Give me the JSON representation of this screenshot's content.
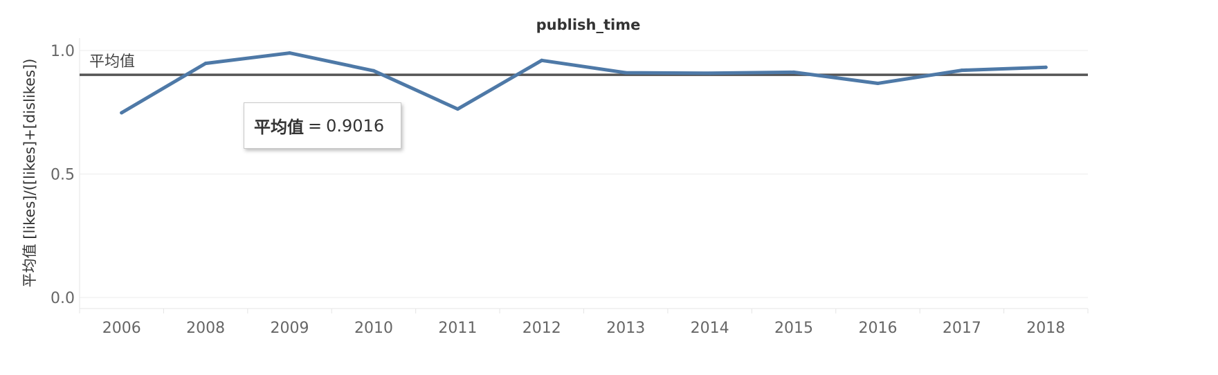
{
  "chart_data": {
    "type": "line",
    "title": "publish_time",
    "ylabel": "平均值 [likes]/([likes]+[dislikes])",
    "xlabel": "",
    "ylim": [
      0,
      1.05
    ],
    "yticks": [
      "0.0",
      "0.5",
      "1.0"
    ],
    "categories": [
      "2006",
      "2008",
      "2009",
      "2010",
      "2011",
      "2012",
      "2013",
      "2014",
      "2015",
      "2016",
      "2017",
      "2018"
    ],
    "series": [
      {
        "values": [
          0.748,
          0.948,
          0.99,
          0.918,
          0.763,
          0.96,
          0.91,
          0.908,
          0.912,
          0.867,
          0.92,
          0.932
        ],
        "color": "#4e79a7"
      }
    ],
    "reference_line": {
      "label": "平均值",
      "value": 0.9016,
      "color": "#555555"
    },
    "tooltip": {
      "name": "平均值",
      "separator": "=",
      "value": "0.9016"
    },
    "grid": true,
    "legend": "none"
  }
}
